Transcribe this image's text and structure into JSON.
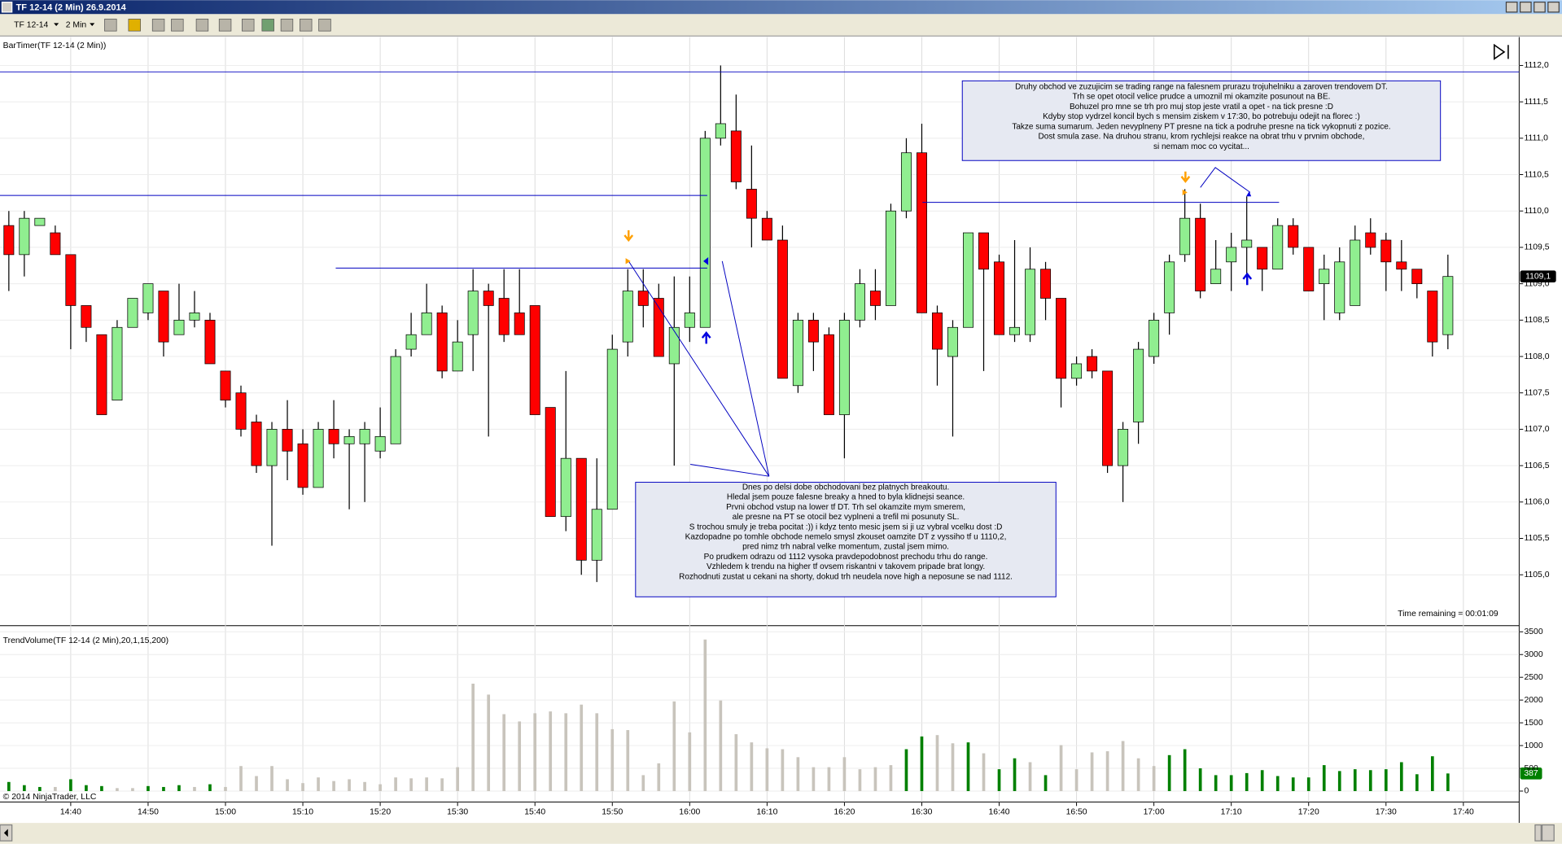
{
  "window": {
    "title": "TF 12-14 (2 Min)  26.9.2014"
  },
  "toolbar": {
    "instrument": "TF 12-14",
    "interval": "2 Min"
  },
  "copyright": "© 2014 NinjaTrader, LLC",
  "chart_data": [
    {
      "type": "candlestick",
      "indicator_label": "BarTimer(TF 12-14 (2 Min))",
      "timer_text": "Time remaining = 00:01:09",
      "x": [
        "14:32",
        "14:34",
        "14:36",
        "14:38",
        "14:40",
        "14:42",
        "14:44",
        "14:46",
        "14:48",
        "14:50",
        "14:52",
        "14:54",
        "14:56",
        "14:58",
        "15:00",
        "15:02",
        "15:04",
        "15:06",
        "15:08",
        "15:10",
        "15:12",
        "15:14",
        "15:16",
        "15:18",
        "15:20",
        "15:22",
        "15:24",
        "15:26",
        "15:28",
        "15:30",
        "15:32",
        "15:34",
        "15:36",
        "15:38",
        "15:40",
        "15:42",
        "15:44",
        "15:46",
        "15:48",
        "15:50",
        "15:52",
        "15:54",
        "15:56",
        "15:58",
        "16:00",
        "16:02",
        "16:04",
        "16:06",
        "16:08",
        "16:10",
        "16:12",
        "16:14",
        "16:16",
        "16:18",
        "16:20",
        "16:22",
        "16:24",
        "16:26",
        "16:28",
        "16:30",
        "16:32",
        "16:34",
        "16:36",
        "16:38",
        "16:40",
        "16:42",
        "16:44",
        "16:46",
        "16:48",
        "16:50",
        "16:52",
        "16:54",
        "16:56",
        "16:58",
        "17:00",
        "17:02",
        "17:04",
        "17:06",
        "17:08",
        "17:10",
        "17:12",
        "17:14",
        "17:16",
        "17:18",
        "17:20",
        "17:22",
        "17:24",
        "17:26",
        "17:28",
        "17:30",
        "17:32",
        "17:34",
        "17:36",
        "17:38"
      ],
      "open": [
        1109.8,
        1109.4,
        1109.8,
        1109.7,
        1109.4,
        1108.7,
        1108.3,
        1107.4,
        1108.4,
        1108.6,
        1108.9,
        1108.3,
        1108.5,
        1108.5,
        1107.8,
        1107.5,
        1107.1,
        1106.5,
        1107.0,
        1106.8,
        1106.2,
        1107.0,
        1106.8,
        1106.8,
        1106.7,
        1106.8,
        1108.1,
        1108.3,
        1108.6,
        1107.8,
        1108.3,
        1108.9,
        1108.8,
        1108.6,
        1108.7,
        1107.3,
        1105.8,
        1106.6,
        1105.2,
        1105.9,
        1108.2,
        1108.9,
        1108.8,
        1107.9,
        1108.4,
        1108.4,
        1111.0,
        1111.1,
        1110.3,
        1109.9,
        1109.6,
        1107.6,
        1108.5,
        1108.3,
        1107.2,
        1108.5,
        1108.9,
        1108.7,
        1110.0,
        1110.8,
        1108.6,
        1108.0,
        1108.4,
        1109.7,
        1109.3,
        1108.3,
        1108.3,
        1109.2,
        1108.8,
        1107.7,
        1108.0,
        1107.8,
        1106.5,
        1107.1,
        1108.0,
        1108.6,
        1109.4,
        1109.9,
        1109.0,
        1109.3,
        1109.5,
        1109.5,
        1109.2,
        1109.8,
        1109.5,
        1109.0,
        1108.6,
        1108.7,
        1109.7,
        1109.6,
        1109.3,
        1109.2,
        1108.9,
        1108.3
      ],
      "high": [
        1110.0,
        1110.0,
        1109.9,
        1109.8,
        1109.4,
        1108.7,
        1108.3,
        1108.5,
        1108.8,
        1109.0,
        1108.9,
        1109.0,
        1108.9,
        1108.6,
        1107.8,
        1107.6,
        1107.2,
        1107.1,
        1107.4,
        1107.0,
        1107.1,
        1107.4,
        1107.0,
        1107.1,
        1107.3,
        1108.1,
        1108.6,
        1109.0,
        1108.7,
        1108.5,
        1109.2,
        1109.0,
        1109.2,
        1109.2,
        1108.7,
        1107.3,
        1107.8,
        1106.6,
        1106.6,
        1108.3,
        1109.2,
        1109.2,
        1109.0,
        1109.1,
        1109.1,
        1111.1,
        1112.0,
        1111.6,
        1110.9,
        1110.0,
        1109.8,
        1108.6,
        1108.6,
        1108.4,
        1108.6,
        1109.2,
        1109.2,
        1110.1,
        1111.0,
        1111.2,
        1108.7,
        1108.5,
        1109.7,
        1109.7,
        1109.4,
        1109.6,
        1109.5,
        1109.3,
        1108.8,
        1108.0,
        1108.1,
        1107.8,
        1107.1,
        1108.2,
        1108.6,
        1109.4,
        1110.3,
        1110.1,
        1109.6,
        1109.7,
        1110.2,
        1109.5,
        1109.9,
        1109.9,
        1109.5,
        1109.4,
        1109.5,
        1109.8,
        1109.9,
        1109.7,
        1109.6,
        1109.2,
        1108.9,
        1109.4
      ],
      "low": [
        1108.9,
        1109.1,
        1109.8,
        1109.4,
        1108.1,
        1108.2,
        1107.2,
        1107.4,
        1108.4,
        1108.5,
        1108.0,
        1108.3,
        1108.4,
        1107.9,
        1107.3,
        1106.9,
        1106.4,
        1105.4,
        1106.3,
        1106.1,
        1106.2,
        1106.6,
        1105.9,
        1106.0,
        1106.6,
        1106.8,
        1108.0,
        1108.3,
        1107.7,
        1107.8,
        1107.8,
        1106.9,
        1108.2,
        1108.3,
        1107.2,
        1105.8,
        1105.6,
        1105.0,
        1104.9,
        1105.9,
        1108.0,
        1108.4,
        1108.0,
        1106.5,
        1108.2,
        1108.4,
        1110.9,
        1110.3,
        1109.5,
        1109.6,
        1107.7,
        1107.5,
        1107.8,
        1107.2,
        1106.6,
        1108.4,
        1108.5,
        1108.7,
        1109.9,
        1108.6,
        1107.6,
        1106.9,
        1108.4,
        1107.8,
        1108.3,
        1108.2,
        1108.2,
        1108.5,
        1107.3,
        1107.6,
        1107.7,
        1106.4,
        1106.0,
        1106.8,
        1107.9,
        1108.3,
        1109.3,
        1108.8,
        1109.0,
        1108.9,
        1109.0,
        1108.9,
        1109.2,
        1109.4,
        1108.9,
        1108.5,
        1108.5,
        1108.7,
        1109.4,
        1108.9,
        1108.9,
        1108.8,
        1108.0,
        1108.1
      ],
      "close": [
        1109.4,
        1109.9,
        1109.9,
        1109.4,
        1108.7,
        1108.4,
        1107.2,
        1108.4,
        1108.8,
        1109.0,
        1108.2,
        1108.5,
        1108.6,
        1107.9,
        1107.4,
        1107.0,
        1106.5,
        1107.0,
        1106.7,
        1106.2,
        1107.0,
        1106.8,
        1106.9,
        1107.0,
        1106.9,
        1108.0,
        1108.3,
        1108.6,
        1107.8,
        1108.2,
        1108.9,
        1108.7,
        1108.3,
        1108.3,
        1107.2,
        1105.8,
        1106.6,
        1105.2,
        1105.9,
        1108.1,
        1108.9,
        1108.7,
        1108.0,
        1108.4,
        1108.6,
        1111.0,
        1111.2,
        1110.4,
        1109.9,
        1109.6,
        1107.7,
        1108.5,
        1108.2,
        1107.2,
        1108.5,
        1109.0,
        1108.7,
        1110.0,
        1110.8,
        1108.6,
        1108.1,
        1108.4,
        1109.7,
        1109.2,
        1108.3,
        1108.4,
        1109.2,
        1108.8,
        1107.7,
        1107.9,
        1107.8,
        1106.5,
        1107.0,
        1108.1,
        1108.5,
        1109.3,
        1109.9,
        1108.9,
        1109.2,
        1109.5,
        1109.6,
        1109.2,
        1109.8,
        1109.5,
        1108.9,
        1109.2,
        1109.3,
        1109.6,
        1109.5,
        1109.3,
        1109.2,
        1109.0,
        1108.2,
        1109.1
      ],
      "up_color": "#90ee90",
      "down_color": "#ff0000",
      "ylim": [
        1104.3,
        1112.35
      ],
      "yticks": [
        {
          "value": 1105.0,
          "label": "1105,0"
        },
        {
          "value": 1105.5,
          "label": "1105,5"
        },
        {
          "value": 1106.0,
          "label": "1106,0"
        },
        {
          "value": 1106.5,
          "label": "1106,5"
        },
        {
          "value": 1107.0,
          "label": "1107,0"
        },
        {
          "value": 1107.5,
          "label": "1107,5"
        },
        {
          "value": 1108.0,
          "label": "1108,0"
        },
        {
          "value": 1108.5,
          "label": "1108,5"
        },
        {
          "value": 1109.0,
          "label": "1109,0"
        },
        {
          "value": 1109.5,
          "label": "1109,5"
        },
        {
          "value": 1110.0,
          "label": "1110,0"
        },
        {
          "value": 1110.5,
          "label": "1110,5"
        },
        {
          "value": 1111.0,
          "label": "1111,0"
        },
        {
          "value": 1111.5,
          "label": "1111,5"
        },
        {
          "value": 1112.0,
          "label": "1112,0"
        }
      ],
      "xticks": [
        "14:40",
        "14:50",
        "15:00",
        "15:10",
        "15:20",
        "15:30",
        "15:40",
        "15:50",
        "16:00",
        "16:10",
        "16:20",
        "16:30",
        "16:40",
        "16:50",
        "17:00",
        "17:10",
        "17:20",
        "17:30",
        "17:40"
      ],
      "last_price": {
        "value": 1109.1,
        "label": "1109,1"
      },
      "grid": true
    },
    {
      "type": "bar",
      "indicator_label": "TrendVolume(TF 12-14 (2 Min),20,1,15,200)",
      "series": [
        {
          "name": "TrendVolume",
          "values": [
            200,
            130,
            90,
            90,
            260,
            130,
            110,
            65,
            65,
            110,
            90,
            130,
            90,
            150,
            90,
            550,
            330,
            550,
            260,
            175,
            300,
            220,
            260,
            200,
            150,
            300,
            280,
            300,
            280,
            525,
            2360,
            2120,
            1690,
            1530,
            1710,
            1750,
            1710,
            1900,
            1710,
            1360,
            1340,
            350,
            610,
            1970,
            1290,
            3330,
            1990,
            1250,
            1070,
            940,
            920,
            745,
            525,
            525,
            745,
            480,
            525,
            570,
            920,
            1200,
            1230,
            1050,
            1070,
            830,
            480,
            720,
            635,
            350,
            1010,
            480,
            850,
            875,
            1100,
            720,
            550,
            790,
            920,
            500,
            350,
            350,
            395,
            460,
            330,
            300,
            300,
            570,
            440,
            480,
            460,
            480,
            635,
            370,
            765,
            387
          ],
          "colors": [
            "#008000",
            "#008000",
            "#008000",
            "#c8c4bc",
            "#008000",
            "#008000",
            "#008000",
            "#c8c4bc",
            "#c8c4bc",
            "#008000",
            "#008000",
            "#008000",
            "#c8c4bc",
            "#008000",
            "#c8c4bc",
            "#c8c4bc",
            "#c8c4bc",
            "#c8c4bc",
            "#c8c4bc",
            "#c8c4bc",
            "#c8c4bc",
            "#c8c4bc",
            "#c8c4bc",
            "#c8c4bc",
            "#c8c4bc",
            "#c8c4bc",
            "#c8c4bc",
            "#c8c4bc",
            "#c8c4bc",
            "#c8c4bc",
            "#c8c4bc",
            "#c8c4bc",
            "#c8c4bc",
            "#c8c4bc",
            "#c8c4bc",
            "#c8c4bc",
            "#c8c4bc",
            "#c8c4bc",
            "#c8c4bc",
            "#c8c4bc",
            "#c8c4bc",
            "#c8c4bc",
            "#c8c4bc",
            "#c8c4bc",
            "#c8c4bc",
            "#c8c4bc",
            "#c8c4bc",
            "#c8c4bc",
            "#c8c4bc",
            "#c8c4bc",
            "#c8c4bc",
            "#c8c4bc",
            "#c8c4bc",
            "#c8c4bc",
            "#c8c4bc",
            "#c8c4bc",
            "#c8c4bc",
            "#c8c4bc",
            "#008000",
            "#008000",
            "#c8c4bc",
            "#c8c4bc",
            "#008000",
            "#c8c4bc",
            "#008000",
            "#008000",
            "#c8c4bc",
            "#008000",
            "#c8c4bc",
            "#c8c4bc",
            "#c8c4bc",
            "#c8c4bc",
            "#c8c4bc",
            "#c8c4bc",
            "#c8c4bc",
            "#008000",
            "#008000",
            "#008000",
            "#008000",
            "#008000",
            "#008000",
            "#008000",
            "#008000",
            "#008000",
            "#008000",
            "#008000",
            "#008000",
            "#008000",
            "#008000",
            "#008000",
            "#008000",
            "#008000",
            "#008000",
            "#008000"
          ]
        }
      ],
      "ylim": [
        -240,
        3590
      ],
      "yticks": [
        0,
        500,
        1000,
        1500,
        2000,
        2500,
        3000,
        3500
      ],
      "last_value": 387,
      "last_color": "#008000",
      "grid": true
    }
  ],
  "annotations": [
    {
      "lines": [
        "Druhy obchod ve zuzujicim se trading range na falesnem prurazu trojuhelniku a zaroven trendovem DT.",
        "Trh se opet otocil velice prudce a umoznil mi okamzite posunout na BE.",
        "Bohuzel pro mne se trh pro muj stop jeste vratil a opet - na tick presne :D",
        "Kdyby stop vydrzel koncil bych s mensim ziskem v 17:30, bo potrebuju odejit na florec :)",
        "Takze suma sumarum. Jeden nevyplneny PT presne na tick a podruhe presne na tick vykopnuti z pozice.",
        "Dost smula zase. Na druhou stranu, krom rychlejsi reakce na obrat trhu v prvnim obchode,",
        "si nemam moc co vycitat..."
      ]
    },
    {
      "lines": [
        "Dnes  po delsi dobe obchodovani bez platnych breakoutu.",
        "Hledal jsem pouze falesne breaky a hned to byla klidnejsi seance.",
        "Prvni obchod vstup na lower tf DT. Trh sel okamzite mym smerem,",
        "ale presne na PT se otocil bez vyplneni a trefil mi posunuty SL.",
        "S trochou smuly je treba pocitat :)) i kdyz tento mesic jsem si ji uz vybral vcelku dost :D",
        "Kazdopadne po tomhle obchode nemelo smysl zkouset oamzite DT z vyssiho tf u 1110,2,",
        "pred nimz trh nabral velke momentum, zustal jsem mimo.",
        "Po prudkem odrazu od 1112 vysoka pravdepodobnost prechodu trhu do range.",
        "Vzhledem k trendu na higher tf ovsem riskantni v takovem pripade brat longy.",
        "Rozhodnuti zustat u cekani na shorty, dokud trh neudela nove high a neposune se nad 1112."
      ]
    }
  ]
}
